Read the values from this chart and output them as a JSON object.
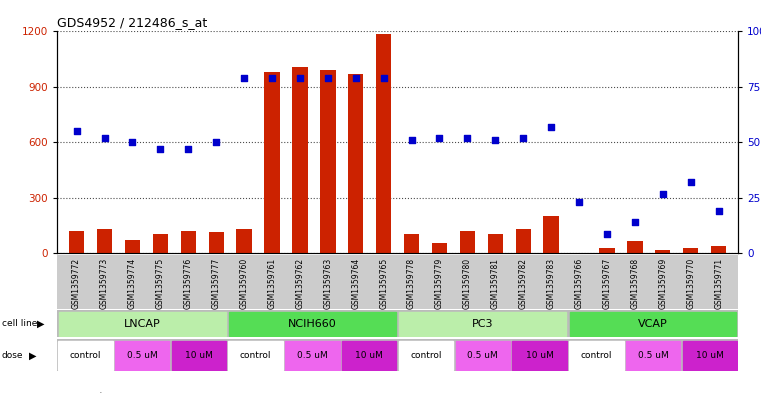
{
  "title": "GDS4952 / 212486_s_at",
  "samples": [
    "GSM1359772",
    "GSM1359773",
    "GSM1359774",
    "GSM1359775",
    "GSM1359776",
    "GSM1359777",
    "GSM1359760",
    "GSM1359761",
    "GSM1359762",
    "GSM1359763",
    "GSM1359764",
    "GSM1359765",
    "GSM1359778",
    "GSM1359779",
    "GSM1359780",
    "GSM1359781",
    "GSM1359782",
    "GSM1359783",
    "GSM1359766",
    "GSM1359767",
    "GSM1359768",
    "GSM1359769",
    "GSM1359770",
    "GSM1359771"
  ],
  "counts": [
    120,
    130,
    75,
    105,
    120,
    115,
    130,
    980,
    1010,
    990,
    970,
    1185,
    108,
    58,
    120,
    108,
    130,
    205,
    5,
    28,
    70,
    18,
    32,
    42
  ],
  "percentiles": [
    55,
    52,
    50,
    47,
    47,
    50,
    79,
    79,
    79,
    79,
    79,
    79,
    51,
    52,
    52,
    51,
    52,
    57,
    23,
    9,
    14,
    27,
    32,
    19
  ],
  "cell_line_data": [
    {
      "label": "LNCAP",
      "start": 0,
      "end": 6,
      "color": "#bbeeaa"
    },
    {
      "label": "NCIH660",
      "start": 6,
      "end": 12,
      "color": "#55dd55"
    },
    {
      "label": "PC3",
      "start": 12,
      "end": 18,
      "color": "#bbeeaa"
    },
    {
      "label": "VCAP",
      "start": 18,
      "end": 24,
      "color": "#55dd55"
    }
  ],
  "dose_data": [
    {
      "label": "control",
      "start": 0,
      "end": 2,
      "color": "#ffffff"
    },
    {
      "label": "0.5 uM",
      "start": 2,
      "end": 4,
      "color": "#ee66ee"
    },
    {
      "label": "10 uM",
      "start": 4,
      "end": 6,
      "color": "#cc22cc"
    },
    {
      "label": "control",
      "start": 6,
      "end": 8,
      "color": "#ffffff"
    },
    {
      "label": "0.5 uM",
      "start": 8,
      "end": 10,
      "color": "#ee66ee"
    },
    {
      "label": "10 uM",
      "start": 10,
      "end": 12,
      "color": "#cc22cc"
    },
    {
      "label": "control",
      "start": 12,
      "end": 14,
      "color": "#ffffff"
    },
    {
      "label": "0.5 uM",
      "start": 14,
      "end": 16,
      "color": "#ee66ee"
    },
    {
      "label": "10 uM",
      "start": 16,
      "end": 18,
      "color": "#cc22cc"
    },
    {
      "label": "control",
      "start": 18,
      "end": 20,
      "color": "#ffffff"
    },
    {
      "label": "0.5 uM",
      "start": 20,
      "end": 22,
      "color": "#ee66ee"
    },
    {
      "label": "10 uM",
      "start": 22,
      "end": 24,
      "color": "#cc22cc"
    }
  ],
  "bar_color": "#cc2200",
  "dot_color": "#0000cc",
  "ylim_left": [
    0,
    1200
  ],
  "ylim_right": [
    0,
    100
  ],
  "yticks_left": [
    0,
    300,
    600,
    900,
    1200
  ],
  "yticks_right": [
    0,
    25,
    50,
    75,
    100
  ],
  "plot_bg": "#ffffff",
  "legend_count_color": "#cc2200",
  "legend_dot_color": "#0000cc",
  "cell_line_bg": "#cccccc",
  "dose_bg": "#cccccc"
}
